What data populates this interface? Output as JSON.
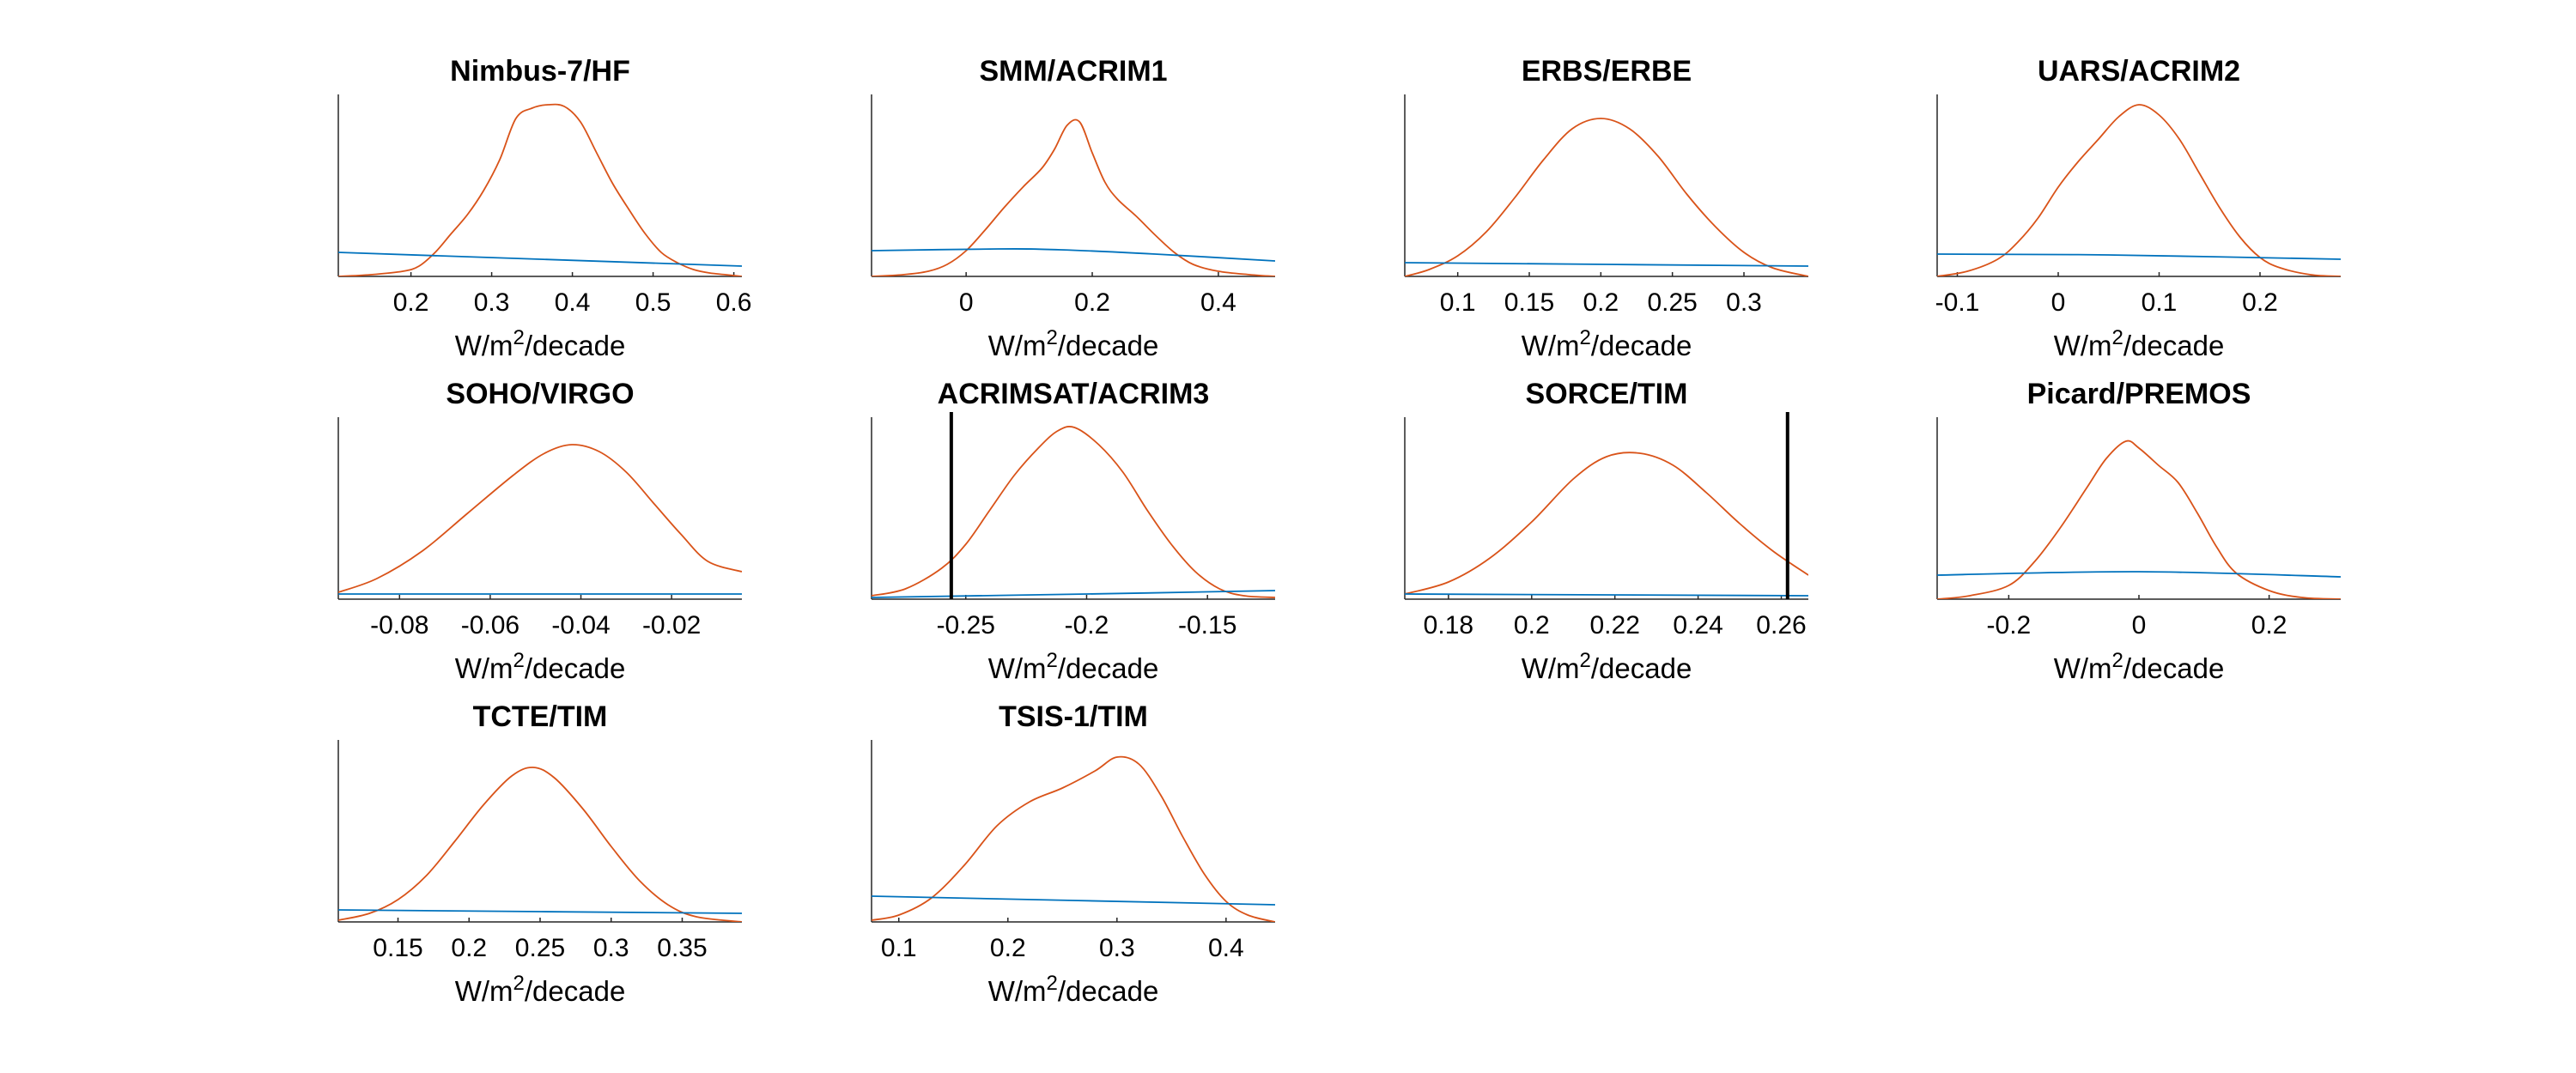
{
  "chart_data": [
    {
      "type": "line",
      "title": "Nimbus-7/HF",
      "xlabel": "W/m²/decade",
      "xlim": [
        0.11,
        0.61
      ],
      "ylim": [
        0,
        1
      ],
      "xticks": [
        0.2,
        0.3,
        0.4,
        0.5,
        0.6
      ],
      "xtick_labels": [
        "0.2",
        "0.3",
        "0.4",
        "0.5",
        "0.6"
      ],
      "series": [
        {
          "color": "#d95319",
          "x": [
            0.11,
            0.15,
            0.19,
            0.21,
            0.23,
            0.25,
            0.27,
            0.29,
            0.31,
            0.33,
            0.35,
            0.37,
            0.39,
            0.41,
            0.43,
            0.45,
            0.47,
            0.49,
            0.51,
            0.53,
            0.55,
            0.57,
            0.59,
            0.61
          ],
          "y": [
            0,
            0.01,
            0.03,
            0.06,
            0.14,
            0.25,
            0.36,
            0.5,
            0.68,
            0.92,
            0.98,
            1.0,
            0.99,
            0.9,
            0.72,
            0.54,
            0.39,
            0.25,
            0.14,
            0.08,
            0.04,
            0.02,
            0.01,
            0
          ]
        },
        {
          "color": "#0072bd",
          "x": [
            0.11,
            0.61
          ],
          "y": [
            0.14,
            0.06
          ]
        }
      ],
      "vlines": []
    },
    {
      "type": "line",
      "title": "SMM/ACRIM1",
      "xlabel": "W/m²/decade",
      "xlim": [
        -0.15,
        0.49
      ],
      "ylim": [
        0,
        1
      ],
      "xticks": [
        0,
        0.2,
        0.4
      ],
      "xtick_labels": [
        "0",
        "0.2",
        "0.4"
      ],
      "series": [
        {
          "color": "#d95319",
          "x": [
            -0.15,
            -0.1,
            -0.06,
            -0.03,
            0,
            0.03,
            0.06,
            0.09,
            0.12,
            0.14,
            0.16,
            0.18,
            0.2,
            0.22,
            0.24,
            0.27,
            0.3,
            0.33,
            0.36,
            0.4,
            0.45,
            0.49
          ],
          "y": [
            0,
            0.01,
            0.03,
            0.07,
            0.15,
            0.27,
            0.4,
            0.52,
            0.63,
            0.74,
            0.88,
            0.9,
            0.72,
            0.55,
            0.45,
            0.35,
            0.24,
            0.14,
            0.07,
            0.03,
            0.01,
            0
          ]
        },
        {
          "color": "#0072bd",
          "x": [
            -0.15,
            0.05,
            0.15,
            0.3,
            0.49
          ],
          "y": [
            0.15,
            0.16,
            0.155,
            0.13,
            0.09
          ]
        }
      ],
      "vlines": []
    },
    {
      "type": "line",
      "title": "ERBS/ERBE",
      "xlabel": "W/m²/decade",
      "xlim": [
        0.063,
        0.345
      ],
      "ylim": [
        0,
        1
      ],
      "xticks": [
        0.1,
        0.15,
        0.2,
        0.25,
        0.3
      ],
      "xtick_labels": [
        "0.1",
        "0.15",
        "0.2",
        "0.25",
        "0.3"
      ],
      "series": [
        {
          "color": "#d95319",
          "x": [
            0.063,
            0.08,
            0.1,
            0.12,
            0.14,
            0.16,
            0.18,
            0.2,
            0.22,
            0.24,
            0.26,
            0.28,
            0.3,
            0.32,
            0.345
          ],
          "y": [
            0,
            0.04,
            0.12,
            0.26,
            0.46,
            0.68,
            0.86,
            0.92,
            0.86,
            0.7,
            0.48,
            0.29,
            0.14,
            0.05,
            0
          ]
        },
        {
          "color": "#0072bd",
          "x": [
            0.063,
            0.345
          ],
          "y": [
            0.08,
            0.06
          ]
        }
      ],
      "vlines": []
    },
    {
      "type": "line",
      "title": "UARS/ACRIM2",
      "xlabel": "W/m²/decade",
      "xlim": [
        -0.12,
        0.28
      ],
      "ylim": [
        0,
        1
      ],
      "xticks": [
        -0.1,
        0,
        0.1,
        0.2
      ],
      "xtick_labels": [
        "-0.1",
        "0",
        "0.1",
        "0.2"
      ],
      "series": [
        {
          "color": "#d95319",
          "x": [
            -0.12,
            -0.09,
            -0.06,
            -0.04,
            -0.02,
            0,
            0.02,
            0.04,
            0.06,
            0.08,
            0.1,
            0.12,
            0.14,
            0.16,
            0.18,
            0.2,
            0.22,
            0.25,
            0.28
          ],
          "y": [
            0,
            0.03,
            0.1,
            0.2,
            0.34,
            0.52,
            0.67,
            0.8,
            0.93,
            1.0,
            0.94,
            0.8,
            0.6,
            0.4,
            0.23,
            0.11,
            0.05,
            0.01,
            0
          ]
        },
        {
          "color": "#0072bd",
          "x": [
            -0.12,
            0.05,
            0.28
          ],
          "y": [
            0.13,
            0.125,
            0.1
          ]
        }
      ],
      "vlines": []
    },
    {
      "type": "line",
      "title": "SOHO/VIRGO",
      "xlabel": "W/m²/decade",
      "xlim": [
        -0.0935,
        -0.0045
      ],
      "ylim": [
        0,
        1
      ],
      "xticks": [
        -0.08,
        -0.06,
        -0.04,
        -0.02
      ],
      "xtick_labels": [
        "-0.08",
        "-0.06",
        "-0.04",
        "-0.02"
      ],
      "series": [
        {
          "color": "#d95319",
          "x": [
            -0.0935,
            -0.085,
            -0.075,
            -0.065,
            -0.055,
            -0.048,
            -0.042,
            -0.036,
            -0.03,
            -0.024,
            -0.018,
            -0.012,
            -0.0045
          ],
          "y": [
            0.04,
            0.12,
            0.28,
            0.5,
            0.72,
            0.85,
            0.9,
            0.86,
            0.74,
            0.56,
            0.38,
            0.22,
            0.16
          ]
        },
        {
          "color": "#0072bd",
          "x": [
            -0.0935,
            -0.0045
          ],
          "y": [
            0.03,
            0.03
          ]
        }
      ],
      "vlines": []
    },
    {
      "type": "line",
      "title": "ACRIMSAT/ACRIM3",
      "xlabel": "W/m²/decade",
      "xlim": [
        -0.289,
        -0.122
      ],
      "ylim": [
        0,
        1
      ],
      "xticks": [
        -0.25,
        -0.2,
        -0.15
      ],
      "xtick_labels": [
        "-0.25",
        "-0.2",
        "-0.15"
      ],
      "series": [
        {
          "color": "#d95319",
          "x": [
            -0.289,
            -0.275,
            -0.26,
            -0.25,
            -0.24,
            -0.23,
            -0.22,
            -0.212,
            -0.205,
            -0.195,
            -0.185,
            -0.175,
            -0.165,
            -0.155,
            -0.145,
            -0.135,
            -0.122
          ],
          "y": [
            0.02,
            0.06,
            0.18,
            0.32,
            0.52,
            0.72,
            0.88,
            0.98,
            1.0,
            0.9,
            0.74,
            0.52,
            0.32,
            0.16,
            0.06,
            0.02,
            0.01
          ]
        },
        {
          "color": "#0072bd",
          "x": [
            -0.289,
            -0.2,
            -0.122
          ],
          "y": [
            0.01,
            0.03,
            0.05
          ]
        }
      ],
      "vlines": [
        -0.256
      ]
    },
    {
      "type": "line",
      "title": "SORCE/TIM",
      "xlabel": "W/m²/decade",
      "xlim": [
        0.1695,
        0.2665
      ],
      "ylim": [
        0,
        1
      ],
      "xticks": [
        0.18,
        0.2,
        0.22,
        0.24,
        0.26
      ],
      "xtick_labels": [
        "0.18",
        "0.2",
        "0.22",
        "0.24",
        "0.26"
      ],
      "series": [
        {
          "color": "#d95319",
          "x": [
            0.1695,
            0.18,
            0.19,
            0.2,
            0.21,
            0.218,
            0.226,
            0.234,
            0.242,
            0.25,
            0.258,
            0.2665
          ],
          "y": [
            0.03,
            0.1,
            0.24,
            0.45,
            0.7,
            0.83,
            0.85,
            0.78,
            0.62,
            0.44,
            0.28,
            0.14
          ]
        },
        {
          "color": "#0072bd",
          "x": [
            0.1695,
            0.2665
          ],
          "y": [
            0.03,
            0.02
          ]
        }
      ],
      "vlines": [
        0.2615
      ]
    },
    {
      "type": "line",
      "title": "Picard/PREMOS",
      "xlabel": "W/m²/decade",
      "xlim": [
        -0.31,
        0.31
      ],
      "ylim": [
        0,
        1
      ],
      "xticks": [
        -0.2,
        0,
        0.2
      ],
      "xtick_labels": [
        "-0.2",
        "0",
        "0.2"
      ],
      "series": [
        {
          "color": "#d95319",
          "x": [
            -0.31,
            -0.26,
            -0.2,
            -0.16,
            -0.12,
            -0.08,
            -0.05,
            -0.02,
            0,
            0.03,
            0.06,
            0.09,
            0.12,
            0.15,
            0.2,
            0.25,
            0.31
          ],
          "y": [
            0,
            0.02,
            0.08,
            0.22,
            0.42,
            0.65,
            0.82,
            0.92,
            0.88,
            0.78,
            0.68,
            0.5,
            0.3,
            0.15,
            0.05,
            0.01,
            0
          ]
        },
        {
          "color": "#0072bd",
          "x": [
            -0.31,
            0,
            0.31
          ],
          "y": [
            0.14,
            0.16,
            0.13
          ]
        }
      ],
      "vlines": []
    },
    {
      "type": "line",
      "title": "TCTE/TIM",
      "xlabel": "W/m²/decade",
      "xlim": [
        0.108,
        0.392
      ],
      "ylim": [
        0,
        1
      ],
      "xticks": [
        0.15,
        0.2,
        0.25,
        0.3,
        0.35
      ],
      "xtick_labels": [
        "0.15",
        "0.2",
        "0.25",
        "0.3",
        "0.35"
      ],
      "series": [
        {
          "color": "#d95319",
          "x": [
            0.108,
            0.13,
            0.15,
            0.17,
            0.19,
            0.21,
            0.23,
            0.245,
            0.26,
            0.28,
            0.3,
            0.32,
            0.34,
            0.36,
            0.392
          ],
          "y": [
            0.01,
            0.05,
            0.13,
            0.27,
            0.47,
            0.68,
            0.85,
            0.9,
            0.84,
            0.66,
            0.44,
            0.24,
            0.1,
            0.03,
            0
          ]
        },
        {
          "color": "#0072bd",
          "x": [
            0.108,
            0.392
          ],
          "y": [
            0.07,
            0.05
          ]
        }
      ],
      "vlines": []
    },
    {
      "type": "line",
      "title": "TSIS-1/TIM",
      "xlabel": "W/m²/decade",
      "xlim": [
        0.075,
        0.445
      ],
      "ylim": [
        0,
        1
      ],
      "xticks": [
        0.1,
        0.2,
        0.3,
        0.4
      ],
      "xtick_labels": [
        "0.1",
        "0.2",
        "0.3",
        "0.4"
      ],
      "series": [
        {
          "color": "#d95319",
          "x": [
            0.075,
            0.1,
            0.13,
            0.16,
            0.19,
            0.22,
            0.25,
            0.28,
            0.3,
            0.32,
            0.34,
            0.36,
            0.38,
            0.4,
            0.42,
            0.445
          ],
          "y": [
            0.01,
            0.04,
            0.14,
            0.33,
            0.56,
            0.7,
            0.78,
            0.88,
            0.96,
            0.92,
            0.74,
            0.5,
            0.28,
            0.12,
            0.04,
            0
          ]
        },
        {
          "color": "#0072bd",
          "x": [
            0.075,
            0.445
          ],
          "y": [
            0.15,
            0.1
          ]
        }
      ],
      "vlines": []
    }
  ]
}
